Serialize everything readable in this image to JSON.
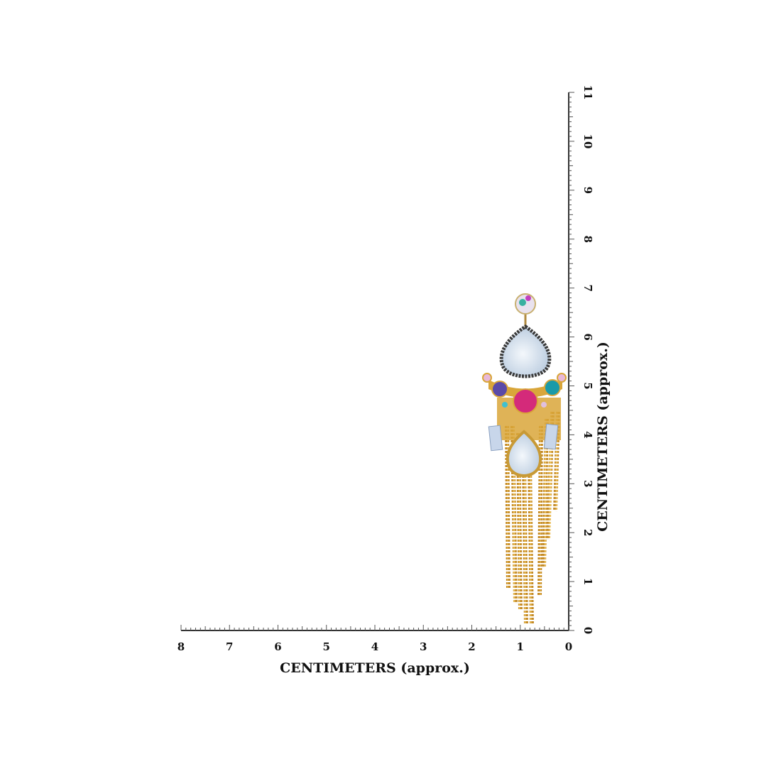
{
  "rulers": {
    "x_axis": {
      "label": "CENTIMETERS (approx.)",
      "range": [
        8,
        0
      ],
      "ticks": [
        "8",
        "7",
        "6",
        "5",
        "4",
        "3",
        "2",
        "1",
        "0"
      ],
      "minor_per_unit": 10
    },
    "y_axis": {
      "label": "CENTIMETERS (approx.)",
      "range": [
        0,
        11
      ],
      "ticks": [
        "0",
        "1",
        "2",
        "3",
        "4",
        "5",
        "6",
        "7",
        "8",
        "9",
        "10",
        "11"
      ],
      "minor_per_unit": 10
    }
  },
  "product": {
    "type": "earring",
    "object_extent_cm": {
      "width": 1.6,
      "height": 6.9
    },
    "colors": {
      "gold": "#d9a63a",
      "opal": "#dce6f0",
      "pink": "#d42a7a",
      "teal": "#1a9aa8",
      "purple": "#5a4aa8",
      "dark_border": "#3a3a3a"
    }
  }
}
